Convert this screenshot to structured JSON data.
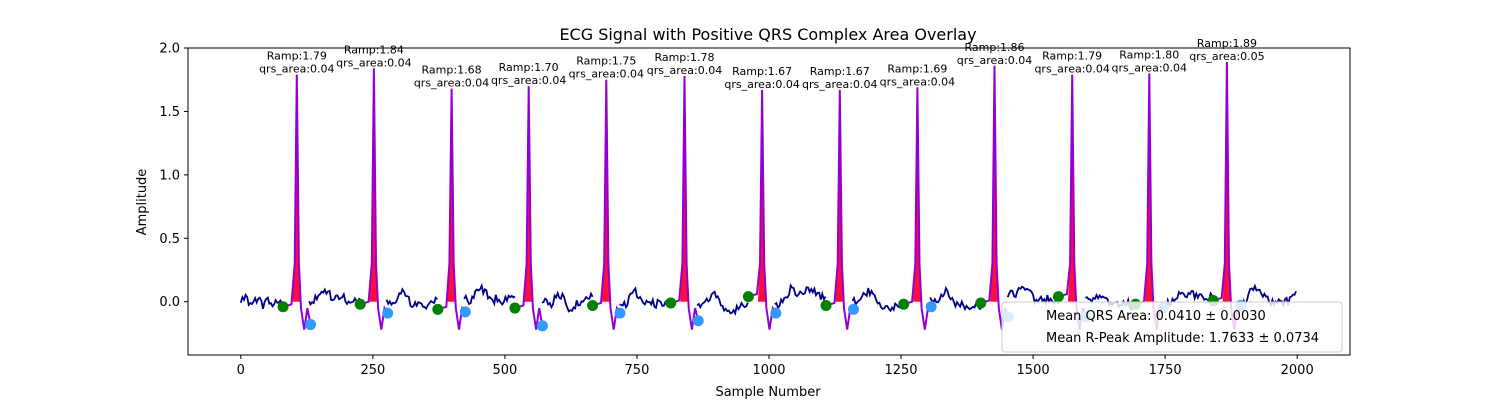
{
  "chart_data": {
    "type": "line",
    "title": "ECG Signal with Positive QRS Complex Area Overlay",
    "xlabel": "Sample Number",
    "ylabel": "Amplitude",
    "xlim": [
      -100,
      2100
    ],
    "ylim": [
      -0.42,
      2.0
    ],
    "xticks": [
      0,
      250,
      500,
      750,
      1000,
      1250,
      1500,
      1750,
      2000
    ],
    "yticks": [
      0.0,
      0.5,
      1.0,
      1.5,
      2.0
    ],
    "xtick_labels": [
      "0",
      "250",
      "500",
      "750",
      "1000",
      "1250",
      "1500",
      "1750",
      "2000"
    ],
    "ytick_labels": [
      "0.0",
      "0.5",
      "1.0",
      "1.5",
      "2.0"
    ],
    "grid": false,
    "colors": {
      "signal": "#00008b",
      "qrs_segment": "#9400d3",
      "qrs_area_fill": "#ff0033",
      "q_marker": "#008000",
      "s_marker": "#3399ff"
    },
    "r_peaks": [
      {
        "x": 106,
        "amplitude": 1.79,
        "label_ramp": "Ramp:1.79",
        "label_area": "qrs_area:0.04"
      },
      {
        "x": 252,
        "amplitude": 1.84,
        "label_ramp": "Ramp:1.84",
        "label_area": "qrs_area:0.04"
      },
      {
        "x": 399,
        "amplitude": 1.68,
        "label_ramp": "Ramp:1.68",
        "label_area": "qrs_area:0.04"
      },
      {
        "x": 545,
        "amplitude": 1.7,
        "label_ramp": "Ramp:1.70",
        "label_area": "qrs_area:0.04"
      },
      {
        "x": 692,
        "amplitude": 1.75,
        "label_ramp": "Ramp:1.75",
        "label_area": "qrs_area:0.04"
      },
      {
        "x": 840,
        "amplitude": 1.78,
        "label_ramp": "Ramp:1.78",
        "label_area": "qrs_area:0.04"
      },
      {
        "x": 987,
        "amplitude": 1.67,
        "label_ramp": "Ramp:1.67",
        "label_area": "qrs_area:0.04"
      },
      {
        "x": 1134,
        "amplitude": 1.67,
        "label_ramp": "Ramp:1.67",
        "label_area": "qrs_area:0.04"
      },
      {
        "x": 1281,
        "amplitude": 1.69,
        "label_ramp": "Ramp:1.69",
        "label_area": "qrs_area:0.04"
      },
      {
        "x": 1427,
        "amplitude": 1.86,
        "label_ramp": "Ramp:1.86",
        "label_area": "qrs_area:0.04"
      },
      {
        "x": 1574,
        "amplitude": 1.79,
        "label_ramp": "Ramp:1.79",
        "label_area": "qrs_area:0.04"
      },
      {
        "x": 1720,
        "amplitude": 1.8,
        "label_ramp": "Ramp:1.80",
        "label_area": "qrs_area:0.04"
      },
      {
        "x": 1867,
        "amplitude": 1.89,
        "label_ramp": "Ramp:1.89",
        "label_area": "qrs_area:0.05"
      }
    ],
    "q_points": [
      {
        "x": 80,
        "y": -0.04
      },
      {
        "x": 226,
        "y": -0.02
      },
      {
        "x": 373,
        "y": -0.06
      },
      {
        "x": 519,
        "y": -0.05
      },
      {
        "x": 666,
        "y": -0.03
      },
      {
        "x": 814,
        "y": -0.01
      },
      {
        "x": 961,
        "y": 0.04
      },
      {
        "x": 1108,
        "y": -0.03
      },
      {
        "x": 1255,
        "y": -0.02
      },
      {
        "x": 1401,
        "y": -0.01
      },
      {
        "x": 1548,
        "y": 0.04
      },
      {
        "x": 1694,
        "y": -0.02
      },
      {
        "x": 1841,
        "y": 0.01
      }
    ],
    "s_points": [
      {
        "x": 132,
        "y": -0.18
      },
      {
        "x": 278,
        "y": -0.09
      },
      {
        "x": 425,
        "y": -0.08
      },
      {
        "x": 571,
        "y": -0.19
      },
      {
        "x": 718,
        "y": -0.09
      },
      {
        "x": 866,
        "y": -0.15
      },
      {
        "x": 1013,
        "y": -0.09
      },
      {
        "x": 1160,
        "y": -0.06
      },
      {
        "x": 1307,
        "y": -0.04
      },
      {
        "x": 1453,
        "y": -0.12
      },
      {
        "x": 1600,
        "y": -0.12
      },
      {
        "x": 1746,
        "y": -0.05
      },
      {
        "x": 1893,
        "y": -0.03
      }
    ],
    "legend": {
      "placement": "lower right",
      "entries": [
        "Mean QRS Area: 0.0410 ± 0.0030",
        "Mean R-Peak Amplitude: 1.7633 ± 0.0734"
      ]
    }
  }
}
